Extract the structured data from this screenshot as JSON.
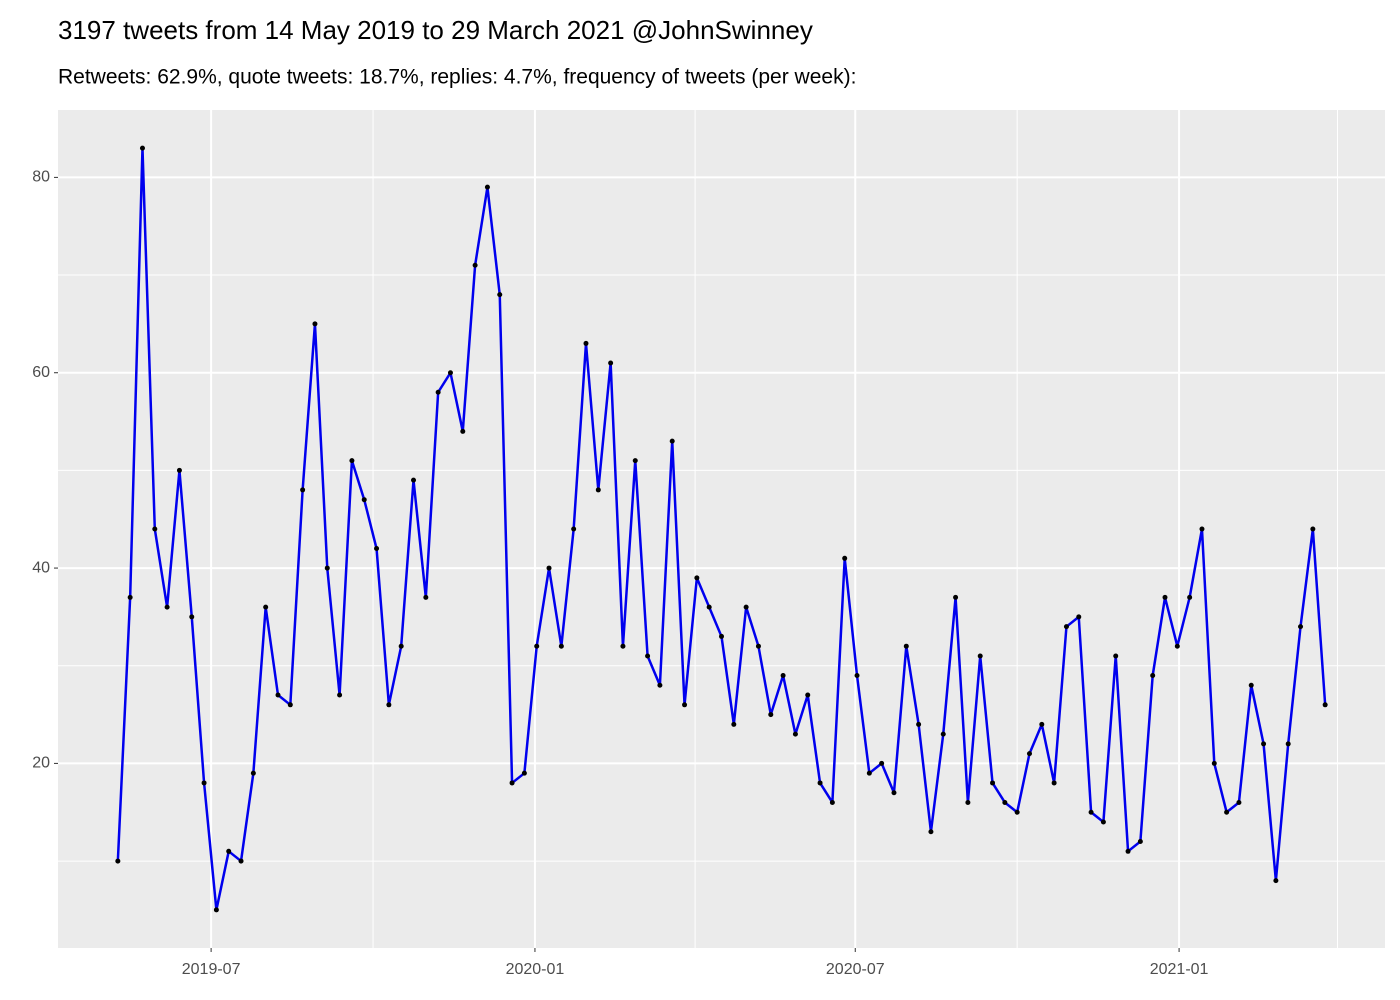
{
  "chart_data": {
    "type": "line",
    "title": "3197 tweets from 14 May 2019 to 29 March 2021 @JohnSwinney",
    "subtitle": "Retweets: 62.9%, quote tweets: 18.7%, replies: 4.7%, frequency of tweets (per week):",
    "x": [
      "2019-05-09",
      "2019-05-16",
      "2019-05-23",
      "2019-05-30",
      "2019-06-06",
      "2019-06-13",
      "2019-06-20",
      "2019-06-27",
      "2019-07-04",
      "2019-07-11",
      "2019-07-18",
      "2019-07-25",
      "2019-08-01",
      "2019-08-08",
      "2019-08-15",
      "2019-08-22",
      "2019-08-29",
      "2019-09-05",
      "2019-09-12",
      "2019-09-19",
      "2019-09-26",
      "2019-10-03",
      "2019-10-10",
      "2019-10-17",
      "2019-10-24",
      "2019-10-31",
      "2019-11-07",
      "2019-11-14",
      "2019-11-21",
      "2019-11-28",
      "2019-12-05",
      "2019-12-12",
      "2019-12-19",
      "2019-12-26",
      "2020-01-02",
      "2020-01-09",
      "2020-01-16",
      "2020-01-23",
      "2020-01-30",
      "2020-02-06",
      "2020-02-13",
      "2020-02-20",
      "2020-02-27",
      "2020-03-05",
      "2020-03-12",
      "2020-03-19",
      "2020-03-26",
      "2020-04-02",
      "2020-04-09",
      "2020-04-16",
      "2020-04-23",
      "2020-04-30",
      "2020-05-07",
      "2020-05-14",
      "2020-05-21",
      "2020-05-28",
      "2020-06-04",
      "2020-06-11",
      "2020-06-18",
      "2020-06-25",
      "2020-07-02",
      "2020-07-09",
      "2020-07-16",
      "2020-07-23",
      "2020-07-30",
      "2020-08-06",
      "2020-08-13",
      "2020-08-20",
      "2020-08-27",
      "2020-09-03",
      "2020-09-10",
      "2020-09-17",
      "2020-09-24",
      "2020-10-01",
      "2020-10-08",
      "2020-10-15",
      "2020-10-22",
      "2020-10-29",
      "2020-11-05",
      "2020-11-12",
      "2020-11-19",
      "2020-11-26",
      "2020-12-03",
      "2020-12-10",
      "2020-12-17",
      "2020-12-24",
      "2020-12-31",
      "2021-01-07",
      "2021-01-14",
      "2021-01-21",
      "2021-01-28",
      "2021-02-04",
      "2021-02-11",
      "2021-02-18",
      "2021-02-25",
      "2021-03-04",
      "2021-03-11",
      "2021-03-18",
      "2021-03-25"
    ],
    "series": [
      {
        "color": "#0000ee",
        "point_color": "#000000",
        "values": [
          10,
          37,
          83,
          44,
          36,
          50,
          35,
          18,
          5,
          11,
          10,
          19,
          36,
          27,
          26,
          48,
          65,
          40,
          27,
          51,
          47,
          42,
          26,
          32,
          49,
          37,
          58,
          60,
          54,
          71,
          79,
          68,
          18,
          19,
          32,
          40,
          32,
          44,
          63,
          48,
          61,
          32,
          51,
          31,
          28,
          53,
          26,
          39,
          36,
          33,
          24,
          36,
          32,
          25,
          29,
          23,
          27,
          18,
          16,
          41,
          29,
          19,
          20,
          17,
          32,
          24,
          13,
          23,
          37,
          16,
          31,
          18,
          16,
          15,
          21,
          24,
          18,
          34,
          35,
          15,
          14,
          31,
          11,
          12,
          29,
          37,
          32,
          37,
          44,
          20,
          15,
          16,
          28,
          22,
          8,
          22,
          34,
          44,
          26
        ]
      }
    ],
    "xlim": [
      "2019-04-05",
      "2021-04-28"
    ],
    "xticks": [
      {
        "value": "2019-07-01",
        "label": "2019-07"
      },
      {
        "value": "2020-01-01",
        "label": "2020-01"
      },
      {
        "value": "2020-07-01",
        "label": "2020-07"
      },
      {
        "value": "2021-01-01",
        "label": "2021-01"
      }
    ],
    "xminor": [
      "2019-10-01",
      "2020-04-01",
      "2020-10-01",
      "2021-04-01"
    ],
    "ylim": [
      1.1,
      86.9
    ],
    "yticks": [
      20,
      40,
      60,
      80
    ],
    "yminor": [
      10,
      30,
      50,
      70
    ],
    "grid": true
  }
}
